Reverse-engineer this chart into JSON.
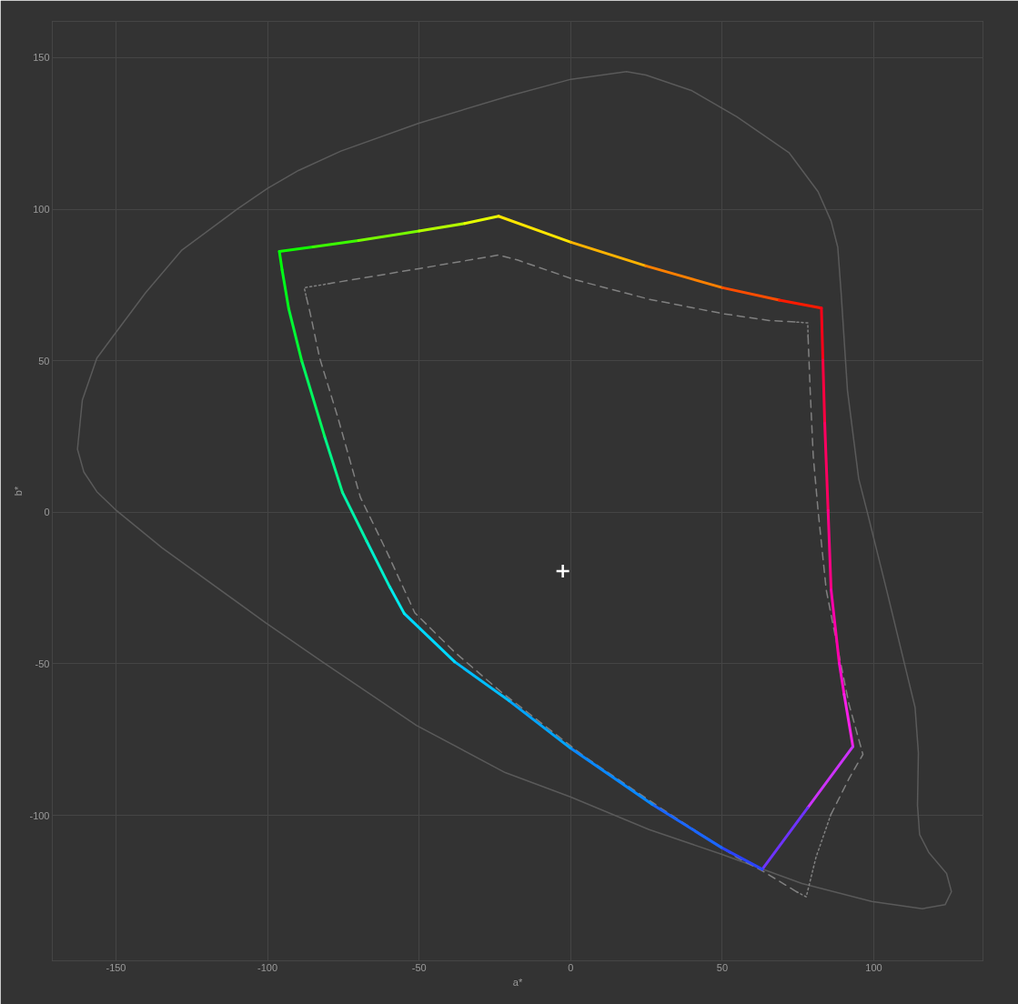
{
  "chart_data": {
    "type": "line",
    "xlabel": "a*",
    "ylabel": "b*",
    "xlim": [
      -171,
      136
    ],
    "ylim": [
      -148,
      162
    ],
    "xticks": [
      -150,
      -100,
      -50,
      0,
      50,
      100
    ],
    "yticks": [
      -100,
      -50,
      0,
      50,
      100,
      150
    ],
    "grid": true,
    "series": [
      {
        "color": "#5a5a5a",
        "line_style": "solid",
        "x": [
          18.4,
          0.1,
          -20.3,
          -50.1,
          -75.8,
          -89.8,
          -100,
          -110.2,
          -128.4,
          -140.2,
          -149.9,
          -156.3,
          -161.1,
          -162.7,
          -160.6,
          -156.3,
          -150.2,
          -134.8,
          -100.7,
          -81.2,
          -50.9,
          -21.6,
          -0.1,
          25.9,
          49.7
        ],
        "values": [
          145.4,
          142.9,
          137.4,
          128.4,
          119.2,
          112.8,
          106.9,
          99.9,
          86.4,
          72.5,
          59.5,
          50.9,
          37.0,
          20.8,
          13.3,
          6.8,
          0.9,
          -11.7,
          -36.4,
          -49.8,
          -70.3,
          -85.9,
          -93.9,
          -104.7,
          -112.8
        ]
      },
      {
        "color": "#5a5a5a",
        "line_style": "solid",
        "x": [
          49.7,
          76.3,
          99.3,
          116.0,
          123.5,
          125.6,
          124.0,
          118.1,
          115.1,
          114.4,
          114.7,
          113.6,
          104.2,
          97.7,
          95.0,
          91.3,
          89.2,
          88.1,
          85.9,
          81.6,
          72.0,
          54.8,
          39.8,
          24.8,
          18.4
        ],
        "values": [
          -112.8,
          -122.5,
          -128.4,
          -130.8,
          -129.5,
          -125.2,
          -119.2,
          -112.2,
          -106.3,
          -96.7,
          -79.4,
          -64.4,
          -25.6,
          0.6,
          11.1,
          40.2,
          72.5,
          87.5,
          96.1,
          105.8,
          118.7,
          130.5,
          139.2,
          144.3,
          145.4
        ]
      },
      {
        "color": "#808080",
        "line_style": "dotted",
        "x": [
          -79.5,
          -87.9,
          -87.2
        ],
        "values": [
          75.5,
          74.1,
          71
        ]
      },
      {
        "color": "#808080",
        "line_style": "dashed",
        "x": [
          -87.2,
          -86.0,
          -82.8,
          -76.9,
          -69.4,
          -60.8,
          -51.4,
          -38.3,
          -23.3,
          4.4,
          29.1,
          54.8,
          63.2,
          74.5
        ],
        "values": [
          71,
          66.0,
          50.9,
          31.6,
          5.0,
          -12.7,
          -33.2,
          -46.1,
          -59.0,
          -80.5,
          -97.2,
          -113.9,
          -118.3,
          -125.2
        ]
      },
      {
        "color": "#808080",
        "line_style": "dotted",
        "x": [
          74.5,
          77.7,
          80.9,
          85.8
        ],
        "values": [
          -125.2,
          -126.9,
          -113.9,
          -99.8
        ]
      },
      {
        "color": "#808080",
        "line_style": "dashed",
        "x": [
          85.8,
          91.9,
          96.4,
          91.8,
          88.1,
          84.3,
          81.6,
          80.0,
          79.0,
          78.3
        ],
        "values": [
          -99.8,
          -87.7,
          -79.9,
          -63.3,
          -45.0,
          -25.6,
          0.6,
          18.7,
          40.2,
          58
        ]
      },
      {
        "color": "#808080",
        "line_style": "dotted",
        "x": [
          78.3,
          78.2,
          74
        ],
        "values": [
          58,
          62.5,
          62.8
        ]
      },
      {
        "color": "#808080",
        "line_style": "dashed",
        "x": [
          74,
          65.5,
          50.5,
          25.9,
          1.2,
          -17.4,
          -23.8,
          -50.1,
          -79.5
        ],
        "values": [
          62.8,
          63.3,
          65.5,
          70.3,
          76.8,
          83.2,
          84.9,
          80.4,
          75.5
        ]
      },
      {
        "color": "#11ff00",
        "x": [
          -96.1,
          -85
        ],
        "values": [
          86.1,
          87.6
        ]
      },
      {
        "color": "#3bff00",
        "x": [
          -85,
          -70
        ],
        "values": [
          87.6,
          89.7
        ]
      },
      {
        "color": "#77ff00",
        "x": [
          -70,
          -50
        ],
        "values": [
          89.7,
          92.8
        ]
      },
      {
        "color": "#b3ff00",
        "x": [
          -50,
          -35
        ],
        "values": [
          92.8,
          95.3
        ]
      },
      {
        "color": "#e6ff00",
        "x": [
          -35,
          -23.8
        ],
        "values": [
          95.3,
          97.7
        ]
      },
      {
        "color": "#ffe600",
        "x": [
          -23.8,
          0.1
        ],
        "values": [
          97.7,
          89.1
        ]
      },
      {
        "color": "#ffb300",
        "x": [
          0.1,
          24.8
        ],
        "values": [
          89.1,
          81.3
        ]
      },
      {
        "color": "#ff8000",
        "x": [
          24.8,
          50.1
        ],
        "values": [
          81.3,
          74.1
        ]
      },
      {
        "color": "#ff4d00",
        "x": [
          50.1,
          68.8
        ],
        "values": [
          74.1,
          70.0
        ]
      },
      {
        "color": "#ff1a00",
        "x": [
          68.8,
          82.7
        ],
        "values": [
          70.0,
          67.4
        ]
      },
      {
        "color": "#ff0018",
        "x": [
          82.7,
          83.2
        ],
        "values": [
          67.4,
          50.2
        ]
      },
      {
        "color": "#ff0040",
        "x": [
          83.2,
          83.8
        ],
        "values": [
          50.2,
          29.4
        ]
      },
      {
        "color": "#ff0060",
        "x": [
          83.8,
          84.9
        ],
        "values": [
          29.4,
          0.6
        ]
      },
      {
        "color": "#ff0085",
        "x": [
          84.9,
          85.9
        ],
        "values": [
          0.6,
          -25.6
        ]
      },
      {
        "color": "#ff00aa",
        "x": [
          85.9,
          88.6
        ],
        "values": [
          -25.6,
          -49.8
        ]
      },
      {
        "color": "#ff08cc",
        "x": [
          88.6,
          90.2
        ],
        "values": [
          -49.8,
          -60.1
        ]
      },
      {
        "color": "#f820e8",
        "x": [
          90.2,
          93.1
        ],
        "values": [
          -60.1,
          -77.3
        ]
      },
      {
        "color": "#cc32f8",
        "x": [
          93.1,
          78.2
        ],
        "values": [
          -77.3,
          -97.5
        ]
      },
      {
        "color": "#6e33ff",
        "x": [
          78.2,
          63.2
        ],
        "values": [
          -97.5,
          -117.8
        ]
      },
      {
        "color": "#2a44ff",
        "x": [
          63.2,
          49.7
        ],
        "values": [
          -117.8,
          -110.6
        ]
      },
      {
        "color": "#1a66ff",
        "x": [
          49.7,
          26.9
        ],
        "values": [
          -110.6,
          -96.4
        ]
      },
      {
        "color": "#0988ff",
        "x": [
          26.9,
          -0.1
        ],
        "values": [
          -96.4,
          -77.8
        ]
      },
      {
        "color": "#00a5ff",
        "x": [
          -0.1,
          -20.3
        ],
        "values": [
          -77.8,
          -62.2
        ]
      },
      {
        "color": "#00beff",
        "x": [
          -20.3,
          -38.3
        ],
        "values": [
          -62.2,
          -49.3
        ]
      },
      {
        "color": "#00d8ff",
        "x": [
          -38.3,
          -54.9
        ],
        "values": [
          -49.3,
          -33.4
        ]
      },
      {
        "color": "#00eaee",
        "x": [
          -54.9,
          -59.7
        ],
        "values": [
          -33.4,
          -24.6
        ]
      },
      {
        "color": "#00efcc",
        "x": [
          -59.7,
          -67.3
        ],
        "values": [
          -24.6,
          -9.5
        ]
      },
      {
        "color": "#00f2aa",
        "x": [
          -67.3,
          -75.3
        ],
        "values": [
          -9.5,
          6.6
        ]
      },
      {
        "color": "#00f588",
        "x": [
          -75.3,
          -81.2
        ],
        "values": [
          6.6,
          25.1
        ]
      },
      {
        "color": "#00f85e",
        "x": [
          -81.2,
          -88.7
        ],
        "values": [
          25.1,
          49.9
        ]
      },
      {
        "color": "#00fb33",
        "x": [
          -88.7,
          -93.0
        ],
        "values": [
          49.9,
          67.1
        ]
      },
      {
        "color": "#00fe1a",
        "x": [
          -93.0,
          -95.2
        ],
        "values": [
          67.1,
          80.0
        ]
      },
      {
        "color": "#00ff08",
        "x": [
          -95.2,
          -96.1
        ],
        "values": [
          80.0,
          86.1
        ]
      },
      {
        "type": "scatter",
        "color": "#ffffff",
        "marker": "cross",
        "x": [
          -2.6
        ],
        "values": [
          -19.4
        ]
      }
    ]
  }
}
